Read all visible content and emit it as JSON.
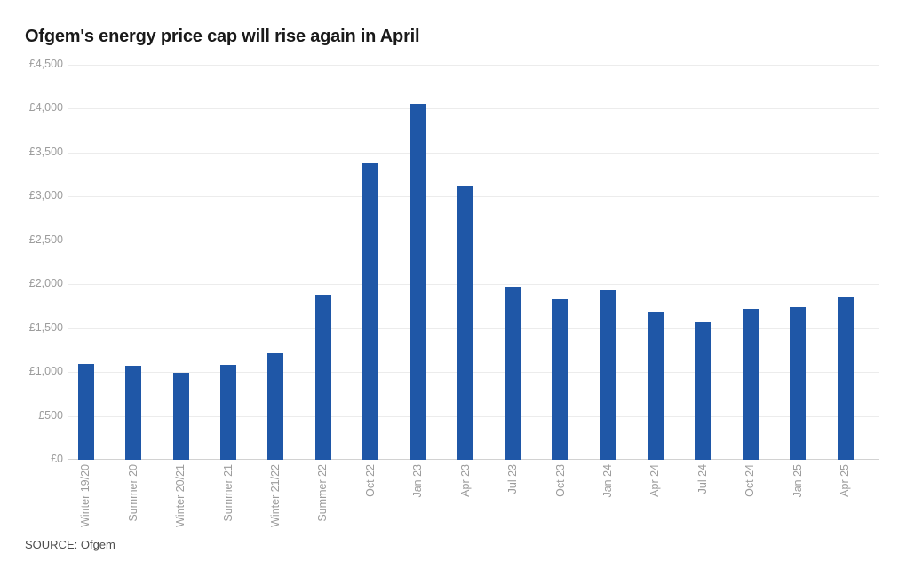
{
  "page": {
    "title": "Ofgem's energy price cap will rise again in April",
    "source_label": "SOURCE: Ofgem"
  },
  "chart_data": {
    "type": "bar",
    "title": "Ofgem's energy price cap will rise again in April",
    "source": "SOURCE: Ofgem",
    "categories": [
      "Winter 19/20",
      "Summer 20",
      "Winter 20/21",
      "Summer 21",
      "Winter 21/22",
      "Summer 22",
      "Oct 22",
      "Jan 23",
      "Apr 23",
      "Jul 23",
      "Oct 23",
      "Jan 24",
      "Apr 24",
      "Jul 24",
      "Oct 24",
      "Jan 25",
      "Apr 25"
    ],
    "values": [
      1090,
      1070,
      990,
      1085,
      1215,
      1885,
      3375,
      4059,
      3116,
      1976,
      1834,
      1928,
      1690,
      1568,
      1717,
      1738,
      1849
    ],
    "ylim": [
      0,
      4500
    ],
    "y_ticks": [
      {
        "value": 0,
        "label": "£0"
      },
      {
        "value": 500,
        "label": "£500"
      },
      {
        "value": 1000,
        "label": "£1,000"
      },
      {
        "value": 1500,
        "label": "£1,500"
      },
      {
        "value": 2000,
        "label": "£2,000"
      },
      {
        "value": 2500,
        "label": "£2,500"
      },
      {
        "value": 3000,
        "label": "£3,000"
      },
      {
        "value": 3500,
        "label": "£3,500"
      },
      {
        "value": 4000,
        "label": "£4,000"
      },
      {
        "value": 4500,
        "label": "£4,500"
      }
    ],
    "xlabel": "",
    "ylabel": "",
    "grid": "horizontal",
    "legend": "none",
    "bar_color": "#1f57a7",
    "colors": {
      "bar": "#1f57a7",
      "grid": "#ececec",
      "axis_line": "#d2d2d2",
      "tick_text": "#9c9c9c",
      "title_text": "#1a1a1a",
      "source_text": "#4d4d4d",
      "background": "#ffffff"
    }
  }
}
